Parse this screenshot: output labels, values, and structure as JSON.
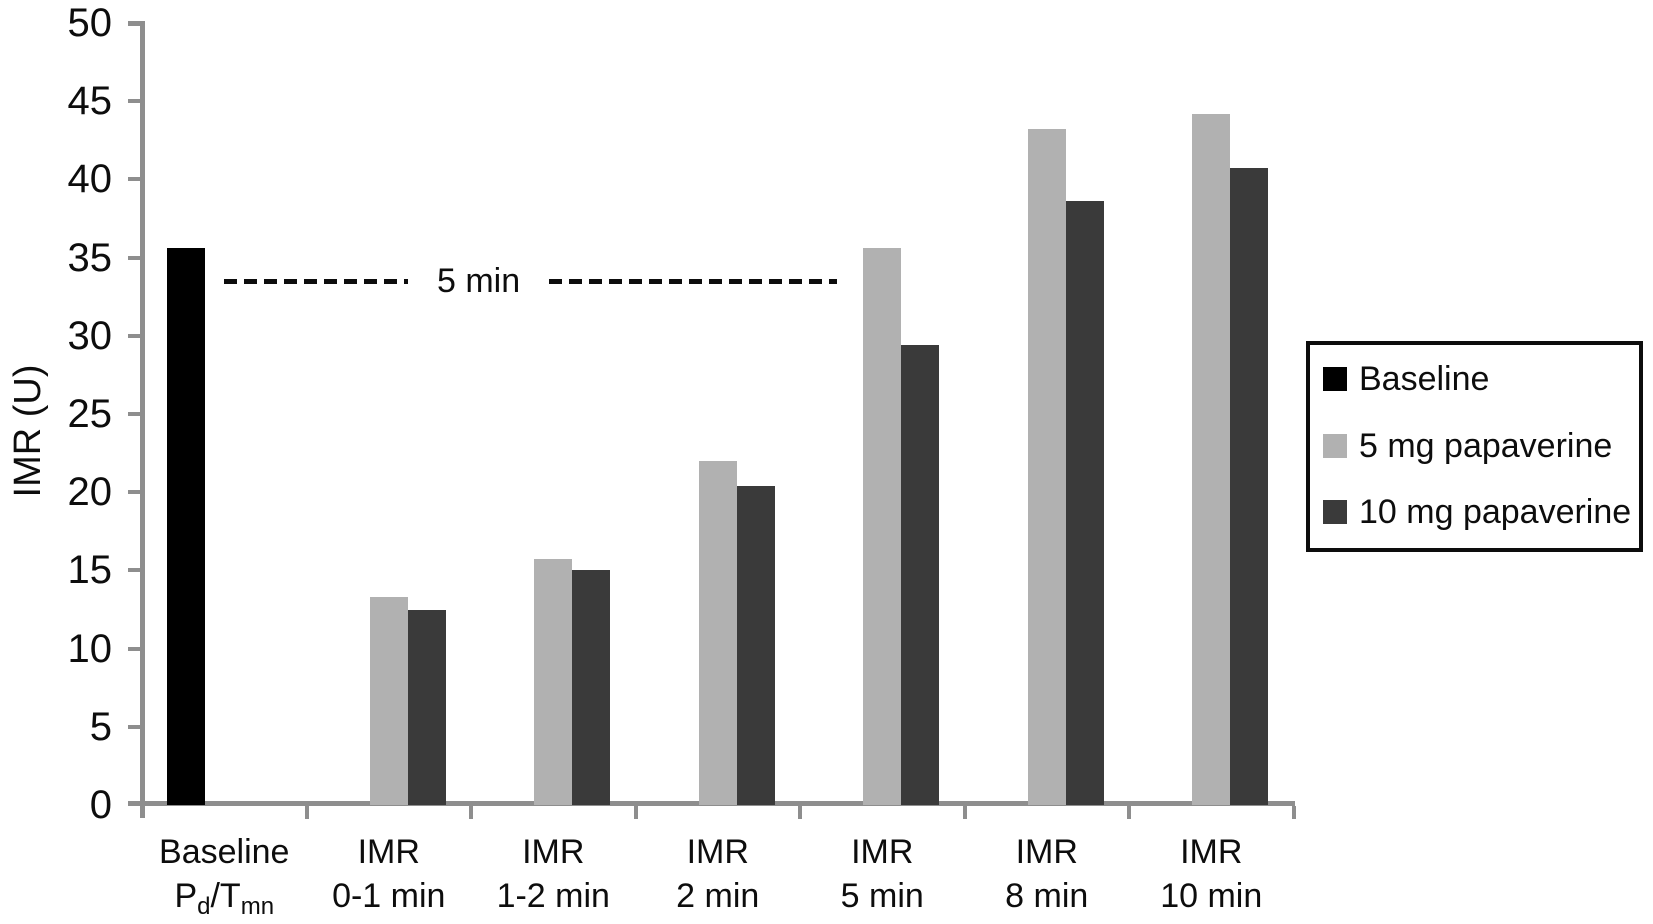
{
  "chart_data": {
    "type": "bar",
    "ylabel": "IMR (U)",
    "ylim": [
      0,
      50
    ],
    "ytick_step": 5,
    "yticks": [
      0,
      5,
      10,
      15,
      20,
      25,
      30,
      35,
      40,
      45,
      50
    ],
    "grid": false,
    "categories": [
      {
        "lines": [
          [
            {
              "text": "Baseline"
            }
          ],
          [
            {
              "text": "P"
            },
            {
              "text": "d",
              "sub": true
            },
            {
              "text": "/T"
            },
            {
              "text": "mn",
              "sub": true
            }
          ]
        ]
      },
      {
        "lines": [
          [
            {
              "text": "IMR"
            }
          ],
          [
            {
              "text": "0-1 min"
            }
          ]
        ]
      },
      {
        "lines": [
          [
            {
              "text": "IMR"
            }
          ],
          [
            {
              "text": "1-2 min"
            }
          ]
        ]
      },
      {
        "lines": [
          [
            {
              "text": "IMR"
            }
          ],
          [
            {
              "text": "2 min"
            }
          ]
        ]
      },
      {
        "lines": [
          [
            {
              "text": "IMR"
            }
          ],
          [
            {
              "text": "5 min"
            }
          ]
        ]
      },
      {
        "lines": [
          [
            {
              "text": "IMR"
            }
          ],
          [
            {
              "text": "8 min"
            }
          ]
        ]
      },
      {
        "lines": [
          [
            {
              "text": "IMR"
            }
          ],
          [
            {
              "text": "10 min"
            }
          ]
        ]
      }
    ],
    "series": [
      {
        "name": "Baseline",
        "color": "#000000",
        "values": [
          35.6,
          null,
          null,
          null,
          null,
          null,
          null
        ]
      },
      {
        "name": "5 mg papaverine",
        "color": "#b1b1b1",
        "values": [
          null,
          13.3,
          15.7,
          22.0,
          35.6,
          43.2,
          44.2
        ]
      },
      {
        "name": "10 mg papaverine",
        "color": "#3a3a3a",
        "values": [
          null,
          12.5,
          15.0,
          20.4,
          29.4,
          38.6,
          40.7
        ]
      }
    ],
    "annotation": {
      "label": "5 min",
      "y_value": 33.5
    },
    "legend": {
      "position": "right"
    },
    "colors": {
      "axis": "#8e8e8e",
      "text": "#0d0d0d",
      "background": "#ffffff"
    }
  }
}
